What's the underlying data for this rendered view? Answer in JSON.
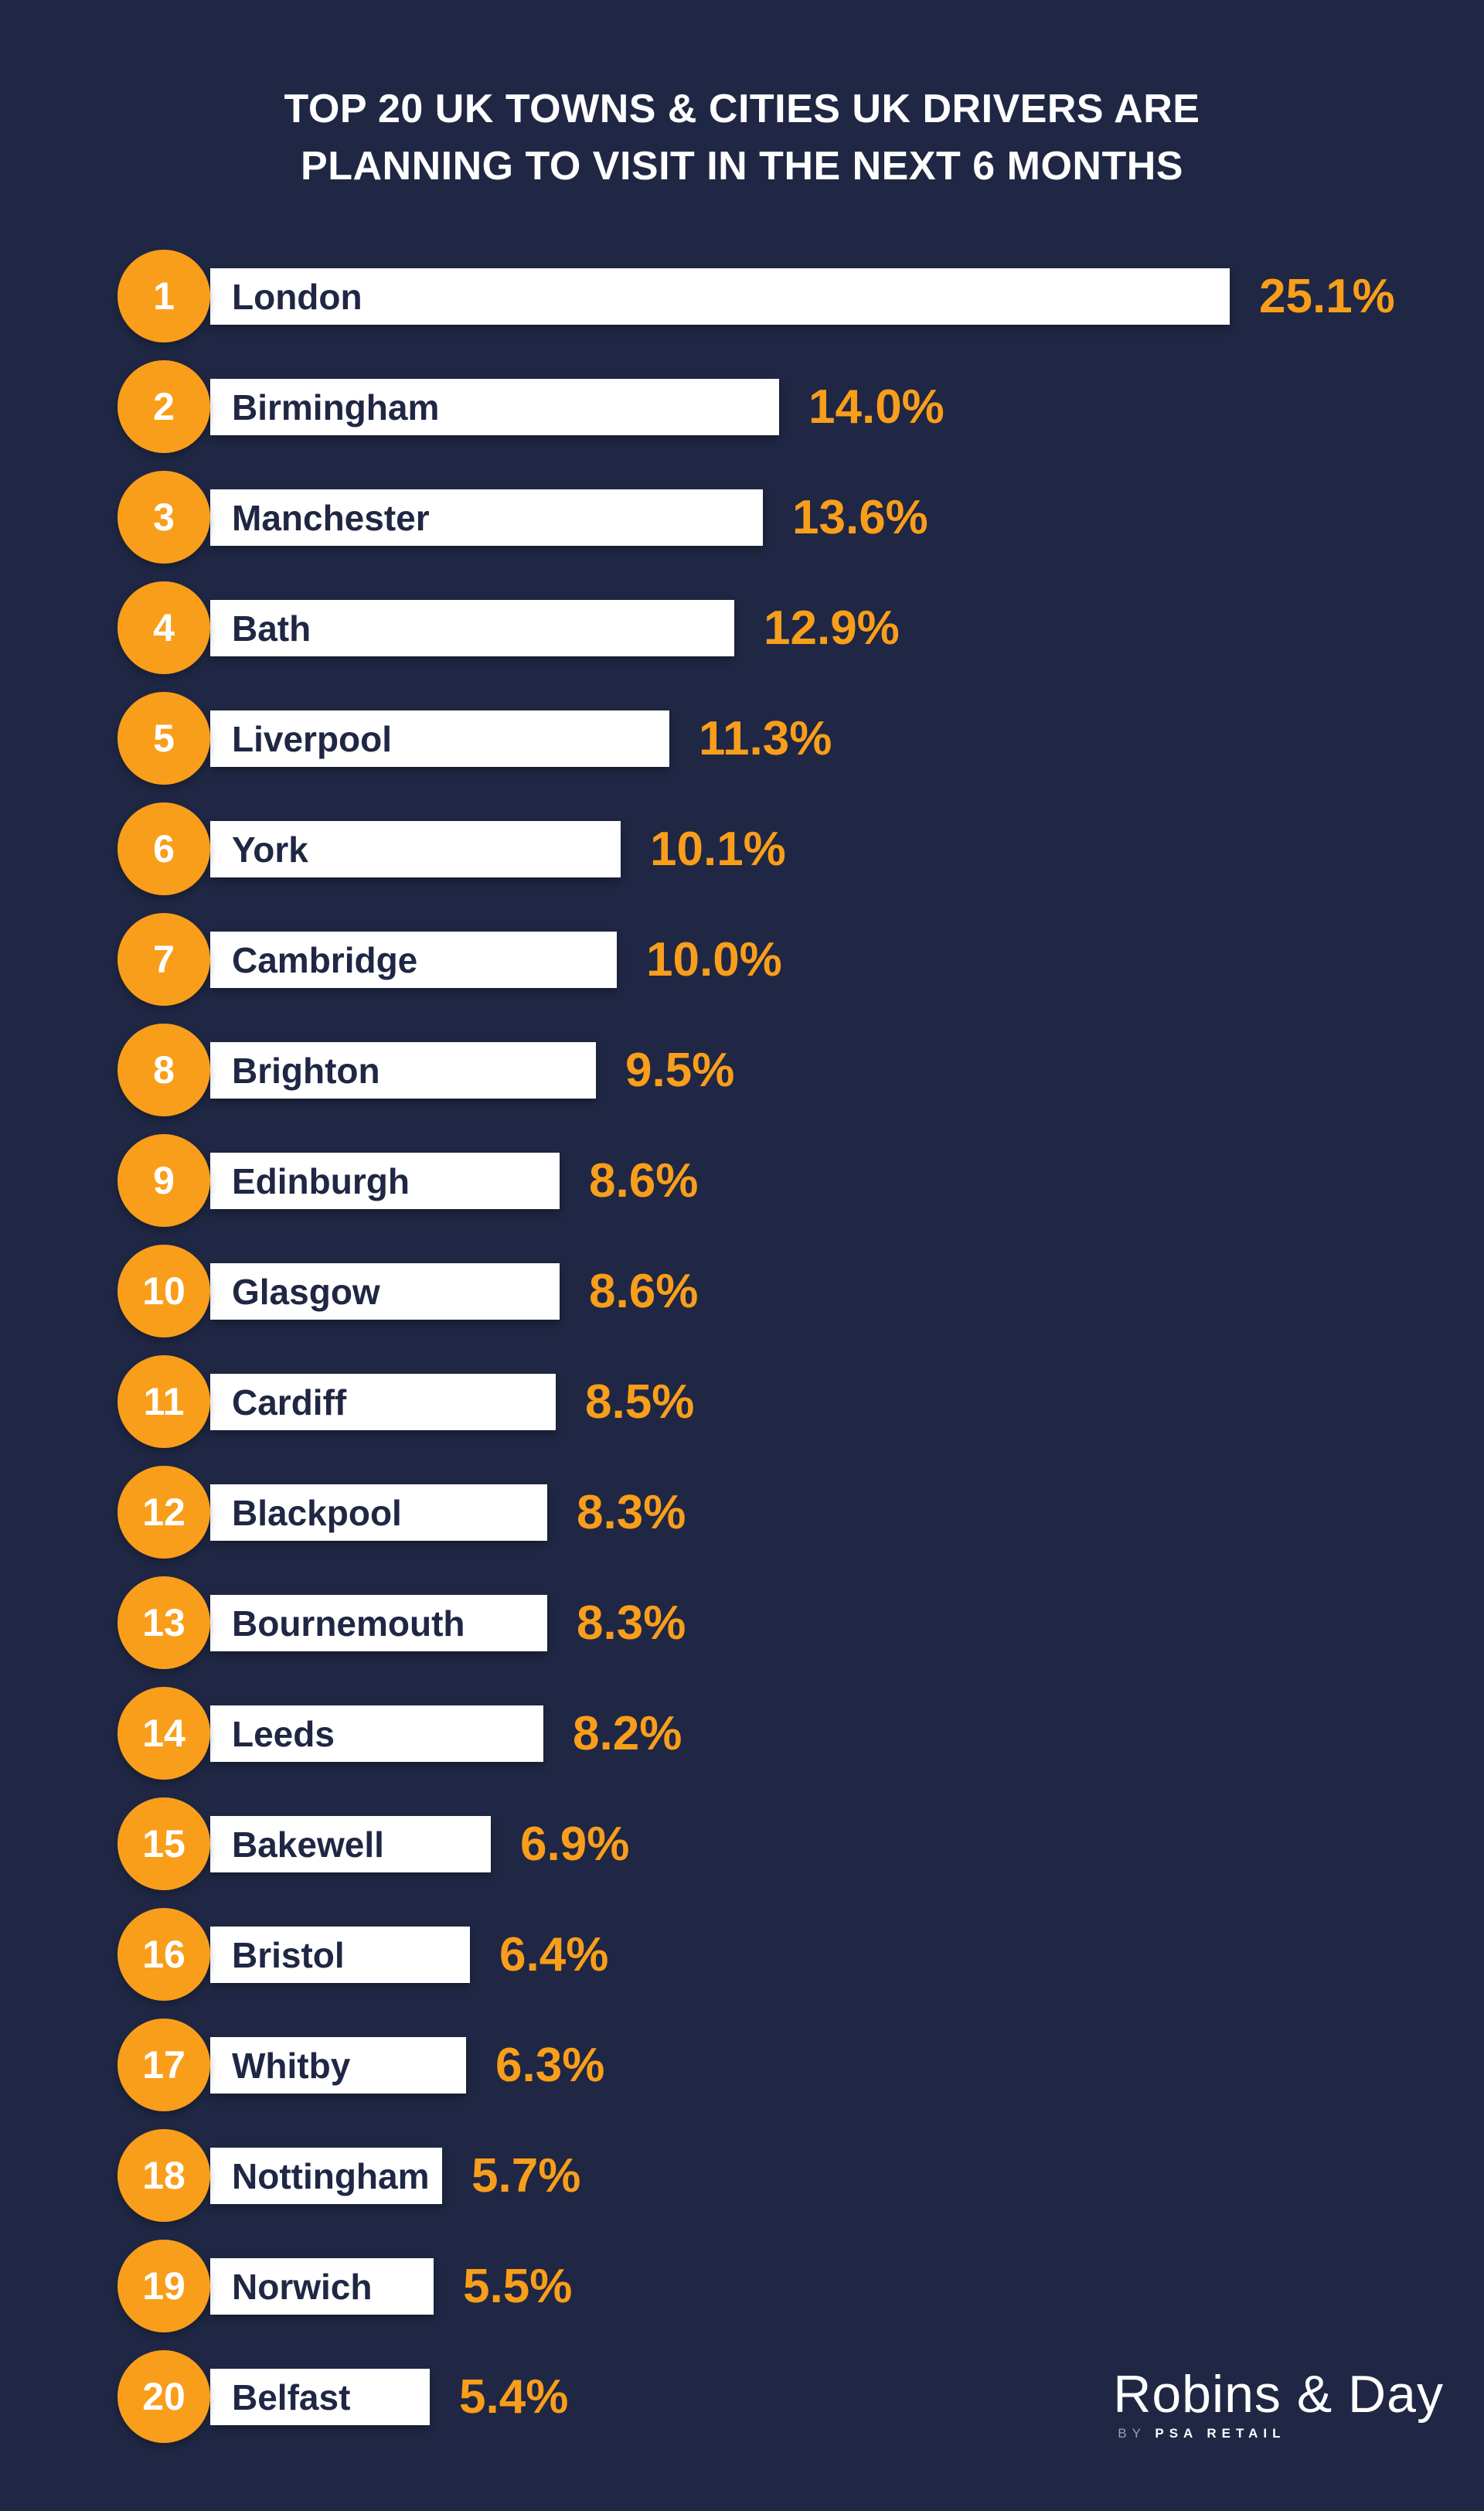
{
  "header": {
    "title_line1": "TOP 20 UK TOWNS & CITIES UK DRIVERS ARE",
    "title_line2": "PLANNING TO VISIT IN THE NEXT 6 MONTHS"
  },
  "chart_data": {
    "type": "bar",
    "orientation": "horizontal",
    "title": "TOP 20 UK TOWNS & CITIES UK DRIVERS ARE PLANNING TO VISIT IN THE NEXT 6 MONTHS",
    "unit": "%",
    "xlim": [
      0,
      26
    ],
    "grid": false,
    "legend": false,
    "ranks": [
      1,
      2,
      3,
      4,
      5,
      6,
      7,
      8,
      9,
      10,
      11,
      12,
      13,
      14,
      15,
      16,
      17,
      18,
      19,
      20
    ],
    "categories": [
      "London",
      "Birmingham",
      "Manchester",
      "Bath",
      "Liverpool",
      "York",
      "Cambridge",
      "Brighton",
      "Edinburgh",
      "Glasgow",
      "Cardiff",
      "Blackpool",
      "Bournemouth",
      "Leeds",
      "Bakewell",
      "Bristol",
      "Whitby",
      "Nottingham",
      "Norwich",
      "Belfast"
    ],
    "values": [
      25.1,
      14.0,
      13.6,
      12.9,
      11.3,
      10.1,
      10.0,
      9.5,
      8.6,
      8.6,
      8.5,
      8.3,
      8.3,
      8.2,
      6.9,
      6.4,
      6.3,
      5.7,
      5.5,
      5.4
    ],
    "labels": [
      "25.1%",
      "14.0%",
      "13.6%",
      "12.9%",
      "11.3%",
      "10.1%",
      "10.0%",
      "9.5%",
      "8.6%",
      "8.6%",
      "8.5%",
      "8.3%",
      "8.3%",
      "8.2%",
      "6.9%",
      "6.4%",
      "6.3%",
      "5.7%",
      "5.5%",
      "5.4%"
    ]
  },
  "branding": {
    "logo_text": "Robins & Day",
    "logo_by": "BY",
    "logo_psa": "PSA RETAIL"
  },
  "colors": {
    "background": "#1F2744",
    "accent_orange": "#F99E1B",
    "bar_fill": "#FFFFFF",
    "bar_text": "#1F2744",
    "rank_text": "#FFFFFF",
    "title_text": "#FFFFFF",
    "logo_by_grey": "#99A0B4"
  }
}
